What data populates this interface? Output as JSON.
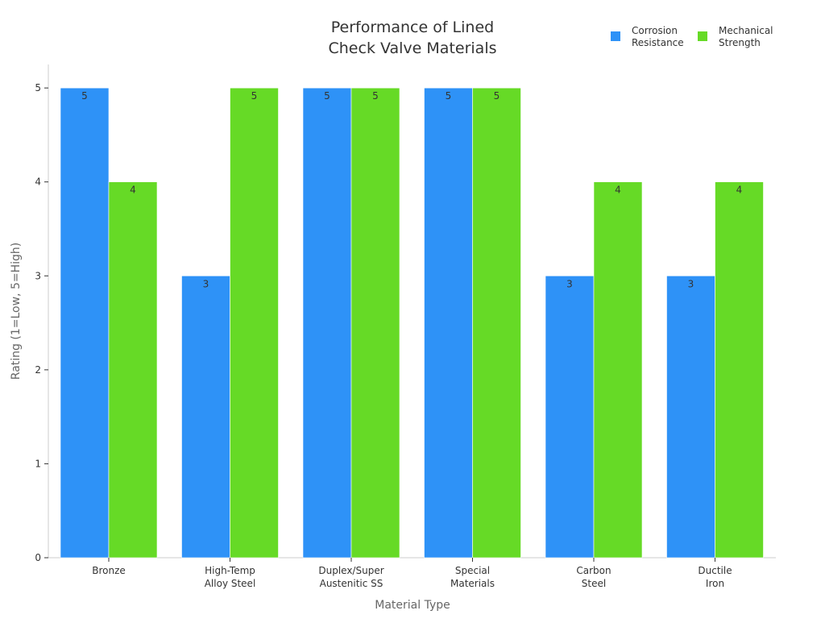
{
  "chart_data": {
    "type": "bar",
    "title_lines": [
      "Performance of Lined",
      "Check Valve Materials"
    ],
    "xlabel": "Material Type",
    "ylabel": "Rating (1=Low, 5=High)",
    "categories": [
      [
        "Bronze"
      ],
      [
        "High-Temp",
        "Alloy Steel"
      ],
      [
        "Duplex/Super",
        "Austenitic SS"
      ],
      [
        "Special",
        "Materials"
      ],
      [
        "Carbon",
        "Steel"
      ],
      [
        "Ductile",
        "Iron"
      ]
    ],
    "series": [
      {
        "name_lines": [
          "Corrosion",
          "Resistance"
        ],
        "color": "#2e92f7",
        "values": [
          5,
          3,
          5,
          5,
          3,
          3
        ]
      },
      {
        "name_lines": [
          "Mechanical",
          "Strength"
        ],
        "color": "#66da26",
        "values": [
          4,
          5,
          5,
          5,
          4,
          4
        ]
      }
    ],
    "ylim": [
      0,
      5.25
    ],
    "yticks": [
      0,
      1,
      2,
      3,
      4,
      5
    ],
    "grid": false,
    "legend_position": "top-right",
    "data_labels": true
  }
}
